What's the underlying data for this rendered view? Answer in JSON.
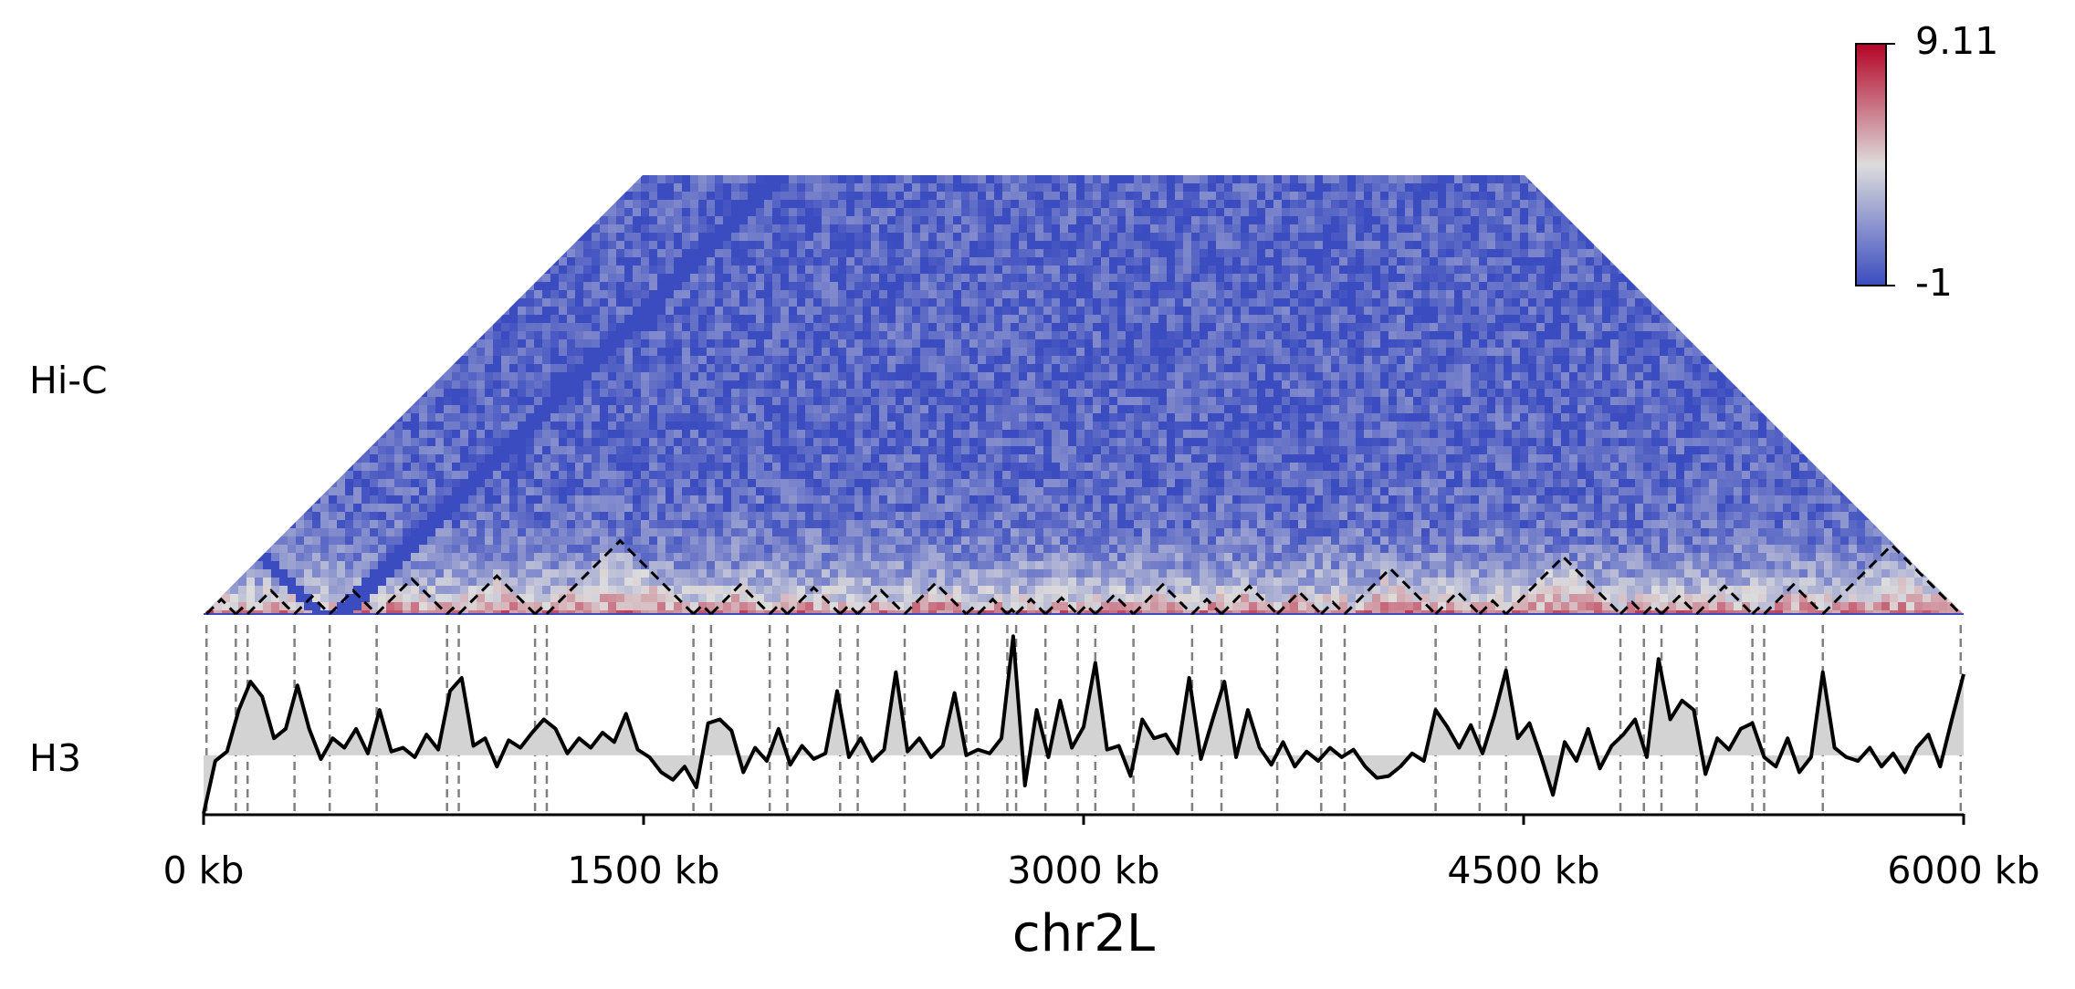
{
  "chart_data": [
    {
      "type": "heatmap",
      "track_label": "Hi-C",
      "clim": [
        -1,
        9.11
      ],
      "colormap": [
        "#3b4cc0",
        "#dddcdc",
        "#b40426"
      ],
      "tad_color": "#000000",
      "boundaries": [
        10,
        110,
        150,
        310,
        430,
        590,
        830,
        870,
        1130,
        1170,
        1670,
        1730,
        1930,
        1990,
        2170,
        2230,
        2390,
        2600,
        2640,
        2740,
        2770,
        2870,
        2980,
        3040,
        3170,
        3370,
        3470,
        3660,
        3810,
        3890,
        4200,
        4350,
        4440,
        4830,
        4910,
        4970,
        5090,
        5280,
        5320,
        5520,
        5990
      ]
    },
    {
      "type": "line",
      "track_label": "H3",
      "color": "#000000",
      "fill_color": "#d3d3d3",
      "fill_baseline": 3.1,
      "boundary_color": "#808080",
      "ylim": [
        0,
        10
      ],
      "xlim": [
        0,
        6000
      ],
      "xticks": [
        {
          "value": 0,
          "label": "0 kb"
        },
        {
          "value": 1500,
          "label": "1500 kb"
        },
        {
          "value": 3000,
          "label": "3000 kb"
        },
        {
          "value": 4500,
          "label": "4500 kb"
        },
        {
          "value": 6000,
          "label": "6000 kb"
        }
      ],
      "xlabel": "chr2L",
      "x": [
        0,
        40,
        80,
        120,
        160,
        200,
        240,
        280,
        320,
        360,
        400,
        440,
        480,
        520,
        560,
        600,
        640,
        680,
        720,
        760,
        800,
        840,
        880,
        920,
        960,
        1000,
        1040,
        1080,
        1120,
        1160,
        1200,
        1240,
        1280,
        1320,
        1360,
        1400,
        1440,
        1480,
        1520,
        1560,
        1600,
        1640,
        1680,
        1720,
        1760,
        1800,
        1840,
        1880,
        1920,
        1960,
        2000,
        2040,
        2080,
        2120,
        2160,
        2200,
        2240,
        2280,
        2320,
        2360,
        2400,
        2440,
        2480,
        2520,
        2560,
        2600,
        2640,
        2680,
        2720,
        2760,
        2800,
        2840,
        2880,
        2920,
        2960,
        3000,
        3040,
        3080,
        3120,
        3160,
        3200,
        3240,
        3280,
        3320,
        3360,
        3400,
        3440,
        3480,
        3520,
        3560,
        3600,
        3640,
        3680,
        3720,
        3760,
        3800,
        3840,
        3880,
        3920,
        3960,
        4000,
        4040,
        4080,
        4120,
        4160,
        4200,
        4240,
        4280,
        4320,
        4360,
        4400,
        4440,
        4480,
        4520,
        4560,
        4600,
        4640,
        4680,
        4720,
        4760,
        4800,
        4840,
        4880,
        4920,
        4960,
        5000,
        5040,
        5080,
        5120,
        5160,
        5200,
        5240,
        5280,
        5320,
        5360,
        5400,
        5440,
        5480,
        5520,
        5560,
        5600,
        5640,
        5680,
        5720,
        5760,
        5800,
        5840,
        5880,
        5920,
        5960,
        6000
      ],
      "values": [
        0.0,
        2.8,
        3.3,
        5.5,
        7.0,
        6.2,
        4.0,
        4.5,
        6.8,
        4.5,
        2.9,
        4.0,
        3.5,
        4.5,
        3.2,
        5.5,
        3.3,
        3.5,
        3.0,
        4.2,
        3.4,
        6.5,
        7.2,
        3.6,
        4.0,
        2.5,
        3.9,
        3.5,
        4.3,
        5.0,
        4.5,
        3.2,
        4.0,
        3.5,
        4.3,
        3.8,
        5.3,
        3.4,
        3.0,
        2.2,
        1.8,
        2.5,
        1.4,
        4.8,
        5.0,
        4.4,
        2.2,
        3.5,
        2.8,
        4.5,
        2.6,
        3.6,
        2.9,
        3.2,
        6.5,
        3.0,
        4.0,
        2.8,
        3.4,
        7.5,
        3.3,
        4.0,
        3.0,
        3.6,
        6.4,
        3.1,
        3.4,
        3.2,
        4.0,
        9.4,
        1.5,
        5.5,
        3.0,
        6.0,
        3.5,
        4.6,
        8.0,
        3.4,
        3.6,
        2.0,
        5.0,
        4.0,
        4.2,
        3.2,
        7.2,
        2.9,
        5.0,
        7.0,
        3.0,
        5.5,
        3.5,
        2.6,
        3.8,
        2.5,
        3.3,
        2.8,
        3.5,
        3.0,
        3.4,
        2.5,
        1.9,
        2.0,
        2.5,
        3.2,
        2.8,
        5.5,
        4.6,
        3.5,
        4.7,
        3.2,
        5.2,
        7.6,
        4.0,
        4.8,
        3.0,
        1.0,
        3.8,
        2.8,
        4.5,
        2.4,
        3.6,
        4.2,
        5.0,
        3.0,
        8.2,
        5.0,
        6.0,
        5.5,
        2.1,
        4.0,
        3.4,
        4.5,
        4.8,
        3.0,
        2.5,
        4.0,
        2.2,
        3.0,
        7.5,
        3.5,
        3.0,
        2.8,
        3.5,
        2.5,
        3.2,
        2.2,
        3.5,
        4.2,
        2.5,
        5.0,
        7.4
      ]
    }
  ]
}
